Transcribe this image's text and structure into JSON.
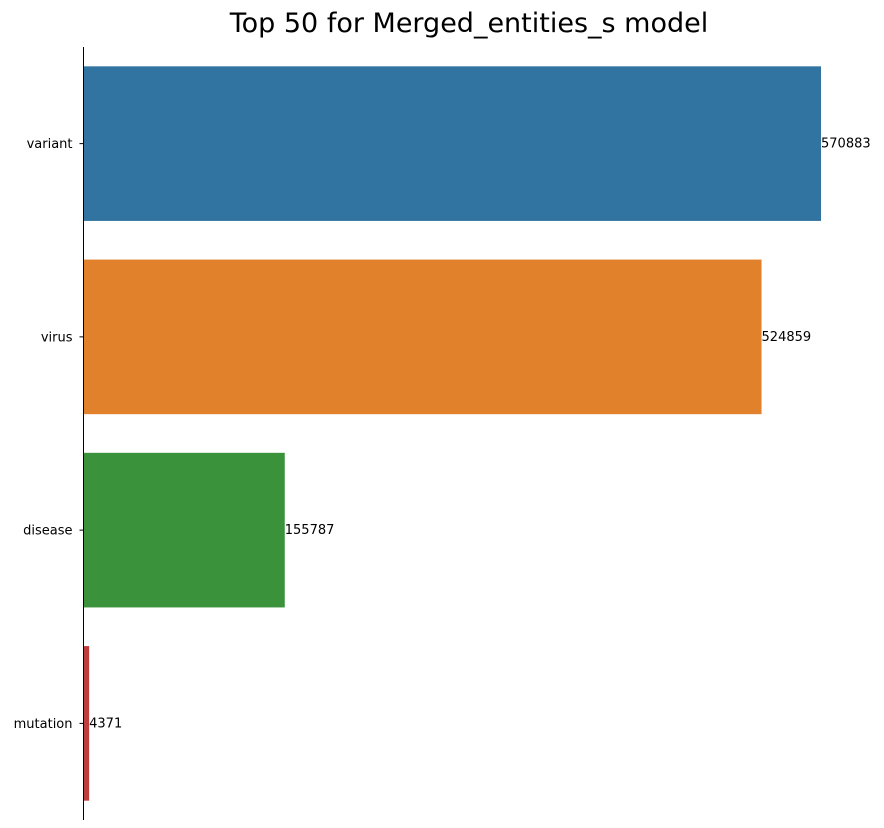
{
  "chart_data": {
    "type": "bar",
    "orientation": "horizontal",
    "title": "Top 50 for Merged_entities_s model",
    "xlabel": "",
    "ylabel": "",
    "categories": [
      "variant",
      "virus",
      "disease",
      "mutation"
    ],
    "values": [
      570883,
      524859,
      155787,
      4371
    ],
    "value_labels": [
      "570883",
      "524859",
      "155787",
      "4371"
    ],
    "colors": [
      "#3274a1",
      "#e1812c",
      "#3a923a",
      "#c03d3e"
    ],
    "xlim": [
      0,
      570883
    ],
    "grid": false,
    "legend": "none",
    "axes": {
      "left_spine": true,
      "bottom_spine": false,
      "top_spine": false,
      "right_spine": false,
      "x_ticks_visible": false
    }
  }
}
